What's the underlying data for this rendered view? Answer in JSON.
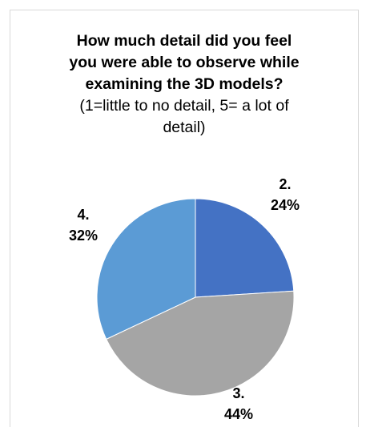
{
  "chart_data": {
    "type": "pie",
    "title_lines": [
      "How much detail did you feel",
      "you were able to observe while",
      "examining the 3D models?"
    ],
    "subtitle_lines": [
      "(1=little to no detail, 5= a lot of",
      "detail)"
    ],
    "slices": [
      {
        "category": "2.",
        "value": 24,
        "label": "24%",
        "color": "#4472C4"
      },
      {
        "category": "3.",
        "value": 44,
        "label": "44%",
        "color": "#A5A5A5"
      },
      {
        "category": "4.",
        "value": 32,
        "label": "32%",
        "color": "#5B9BD5"
      }
    ],
    "start_angle": "12 o'clock",
    "direction": "clockwise",
    "legend": "none"
  }
}
